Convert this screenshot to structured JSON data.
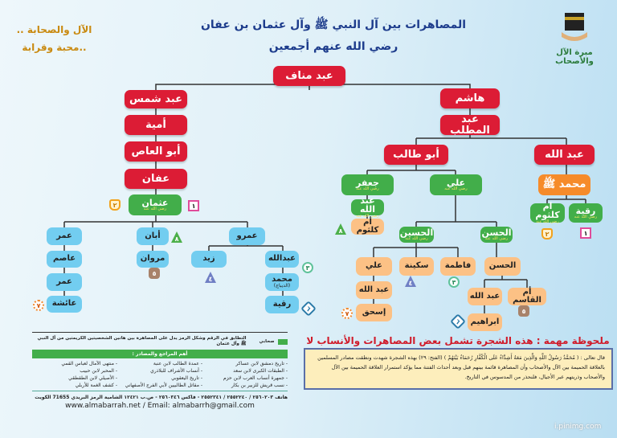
{
  "header": {
    "title_line1": "المصاهرات بين آل النبي ﷺ وآل عثمان بن عفان",
    "title_line2": "رضي الله عنهم أجمعين",
    "slogan_line1": "الآل والصحابة ..",
    "slogan_line2": "..محبة وقرابة",
    "logo_text": "مبرة الآل والأصحاب"
  },
  "honorific": "رضي الله عنه",
  "nodes": {
    "abd_manaf": "عبد مناف",
    "abd_shams": "عبد شمس",
    "umayya": "أمية",
    "abul_as": "أبو العاص",
    "affan": "عفان",
    "uthman": "عثمان",
    "umar1": "عمر",
    "asim": "عاصم",
    "umar2": "عمر",
    "aisha": "عائشة",
    "aban": "أبان",
    "marwan": "مروان",
    "amr": "عمرو",
    "zayd": "زيد",
    "abdullah_u": "عبدالله",
    "muhammad_d": "محمد",
    "muhammad_d_sub": "(الديباج)",
    "ruqayya_u": "رقية",
    "hashim": "هاشم",
    "abd_muttalib": "عبد المطلب",
    "abu_talib": "أبو طالب",
    "abdullah": "عبد الله",
    "muhammad": "محمد ﷺ",
    "umm_kulthum_p": "ام كلثوم",
    "ruqayya_p": "رقية",
    "jafar": "جعفر",
    "abdullah_j": "عبد الله",
    "umm_kulthum_j": "أم كلثوم",
    "ali": "علي",
    "husayn": "الحسين",
    "hasan": "الحسن",
    "ali_h": "علي",
    "abdullah_ah": "عبد الله",
    "ishaq": "إسحق",
    "sukayna": "سكينة",
    "fatima": "فاطمة",
    "hasan2": "الحسن",
    "abdullah_hh": "عبد الله",
    "umm_qasim": "أم القاسم",
    "ibrahim": "ابراهيم"
  },
  "badges": [
    "١",
    "٢",
    "٣",
    "٤",
    "٥",
    "٦",
    "٧",
    "٨"
  ],
  "legend": {
    "swatch_label": "صحابي",
    "match_text": "التطابق في الرقم وشكل الرمز يدل على المصاهرة بين هاتين الشخصيتين الكريمتين من آل النبي ﷺ وآل عثمان",
    "sources_title": "أهم المراجع والمصادر :",
    "sources": [
      "- تاريخ دمشق لابن عساكر",
      "- عمدة الطالب لابن عنبة",
      "- منتهى الآمال لعباس القمي",
      "- الطبقات الكبرى لابن سعد",
      "- أنساب الأشراف للبلاذري",
      "- المحبر لابن حبيب",
      "- جمهرة أنساب العرب لابن حزم",
      "- تاريخ اليعقوبي",
      "- الأصيلي لابن الطقطقي",
      "- نسب قريش للزبير بن بكار",
      "- مقاتل الطالبيين لأبي الفرج الأصفهاني",
      "- كشف الغمة للأربلي"
    ],
    "contact": "هاتف ٢٥٦٠٢٠٣ / ٢٥٥٢٢٤٠ / ٢٥٥٢٣٤١ - فاكس ٢٥٦٠٣٤٦ - ص.ب ١٢٤٢١ الشامية الرمز البريدي 71655 الكويت",
    "web": "www.almabarrah.net / Email: almabarrh@gmail.com"
  },
  "note": {
    "title": "ملحوظة مهمة : هذه الشجرة تشمل بعض المصاهرات والأنساب لا كلها",
    "text": "قال تعالى : ( مُحَمَّدٌ رَسُولُ اللَّهِ وَالَّذِينَ مَعَهُ أَشِدَّاءُ عَلَى الْكُفَّارِ رُحَمَاءُ بَيْنَهُمْ ) (الفتح: ٢٩) بهذه الشجرة شهدت ونطقت مصادر المسلمين بالعلاقة الحميمة بين الآل والأصحاب وأن المصاهرة قائمة بينهم قبل وبعد أحداث الفتنة مما يؤكد استمرار العلاقة الحميمة بين الآل والأصحاب وذريتهم عبر الأجيال، فلنحذر من المدسوس في التاريخ."
  },
  "watermark": "i.pinimg.com",
  "colors": {
    "red": "#dc1c35",
    "green": "#42ae4a",
    "blue": "#72cdf0",
    "peach": "#fcc185",
    "orange": "#f68b2a",
    "title": "#1d3c8c"
  }
}
